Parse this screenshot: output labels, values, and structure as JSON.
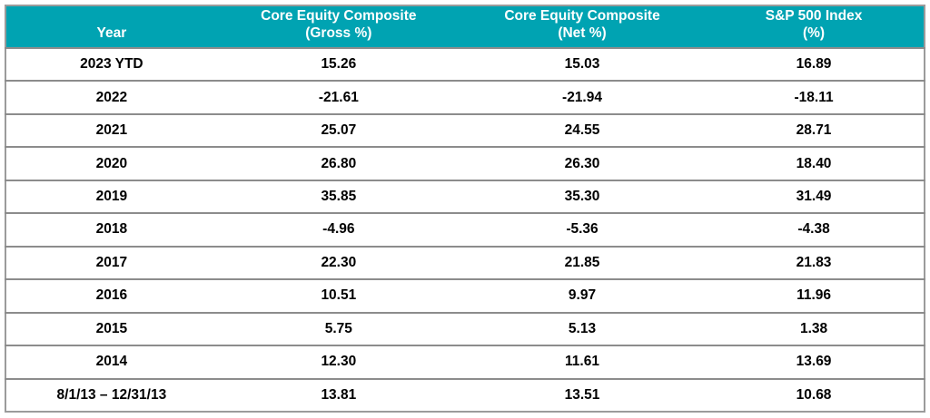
{
  "colors": {
    "header_bg": "#00a3b2",
    "header_text": "#ffffff",
    "body_text": "#000000",
    "row_border": "#8c8c8c",
    "outer_border": "#9b9b9b"
  },
  "chart_data": {
    "type": "table",
    "columns": [
      {
        "line1": "",
        "line2": "Year"
      },
      {
        "line1": "Core Equity Composite",
        "line2": "(Gross %)"
      },
      {
        "line1": "Core Equity Composite",
        "line2": "(Net %)"
      },
      {
        "line1": "S&P 500 Index",
        "line2": "(%)"
      }
    ],
    "rows": [
      [
        "2023 YTD",
        "15.26",
        "15.03",
        "16.89"
      ],
      [
        "2022",
        "-21.61",
        "-21.94",
        "-18.11"
      ],
      [
        "2021",
        "25.07",
        "24.55",
        "28.71"
      ],
      [
        "2020",
        "26.80",
        "26.30",
        "18.40"
      ],
      [
        "2019",
        "35.85",
        "35.30",
        "31.49"
      ],
      [
        "2018",
        "-4.96",
        "-5.36",
        "-4.38"
      ],
      [
        "2017",
        "22.30",
        "21.85",
        "21.83"
      ],
      [
        "2016",
        "10.51",
        "9.97",
        "11.96"
      ],
      [
        "2015",
        "5.75",
        "5.13",
        "1.38"
      ],
      [
        "2014",
        "12.30",
        "11.61",
        "13.69"
      ],
      [
        "8/1/13 – 12/31/13",
        "13.81",
        "13.51",
        "10.68"
      ]
    ]
  }
}
